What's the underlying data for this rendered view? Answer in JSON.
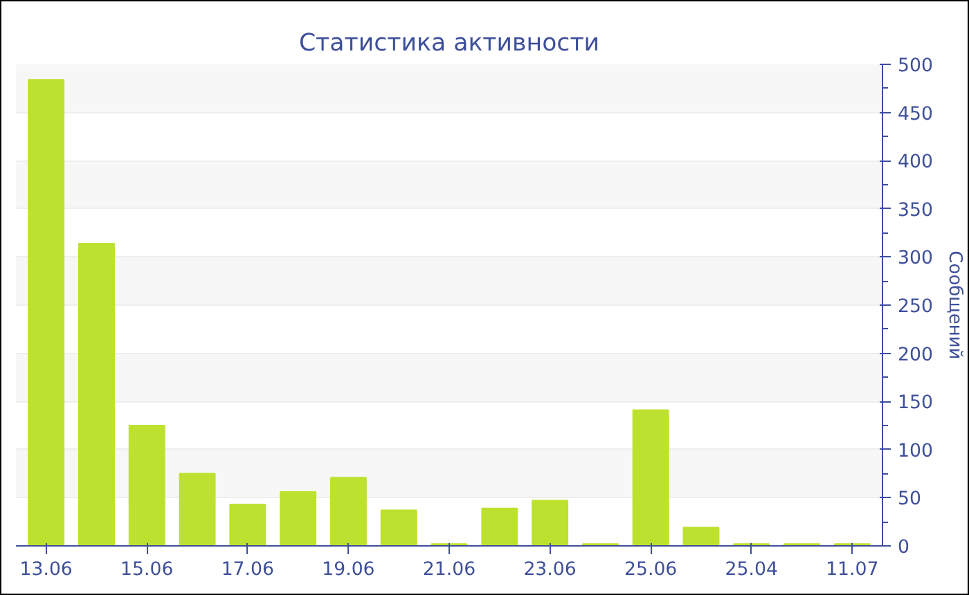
{
  "chart_data": {
    "type": "bar",
    "title": "Статистика активности",
    "ylabel": "Сообщений",
    "categories": [
      "13.06",
      null,
      "15.06",
      null,
      "17.06",
      null,
      "19.06",
      null,
      "21.06",
      null,
      "23.06",
      null,
      "25.06",
      null,
      "25.04",
      null,
      "11.07"
    ],
    "values": [
      484,
      314,
      125,
      75,
      43,
      56,
      71,
      37,
      2,
      39,
      47,
      2,
      141,
      19,
      2,
      2,
      2
    ],
    "color": "#bde12f",
    "ylim": [
      0,
      500
    ],
    "yticks": [
      0,
      50,
      100,
      150,
      200,
      250,
      300,
      350,
      400,
      450,
      500
    ],
    "grid": "y"
  }
}
